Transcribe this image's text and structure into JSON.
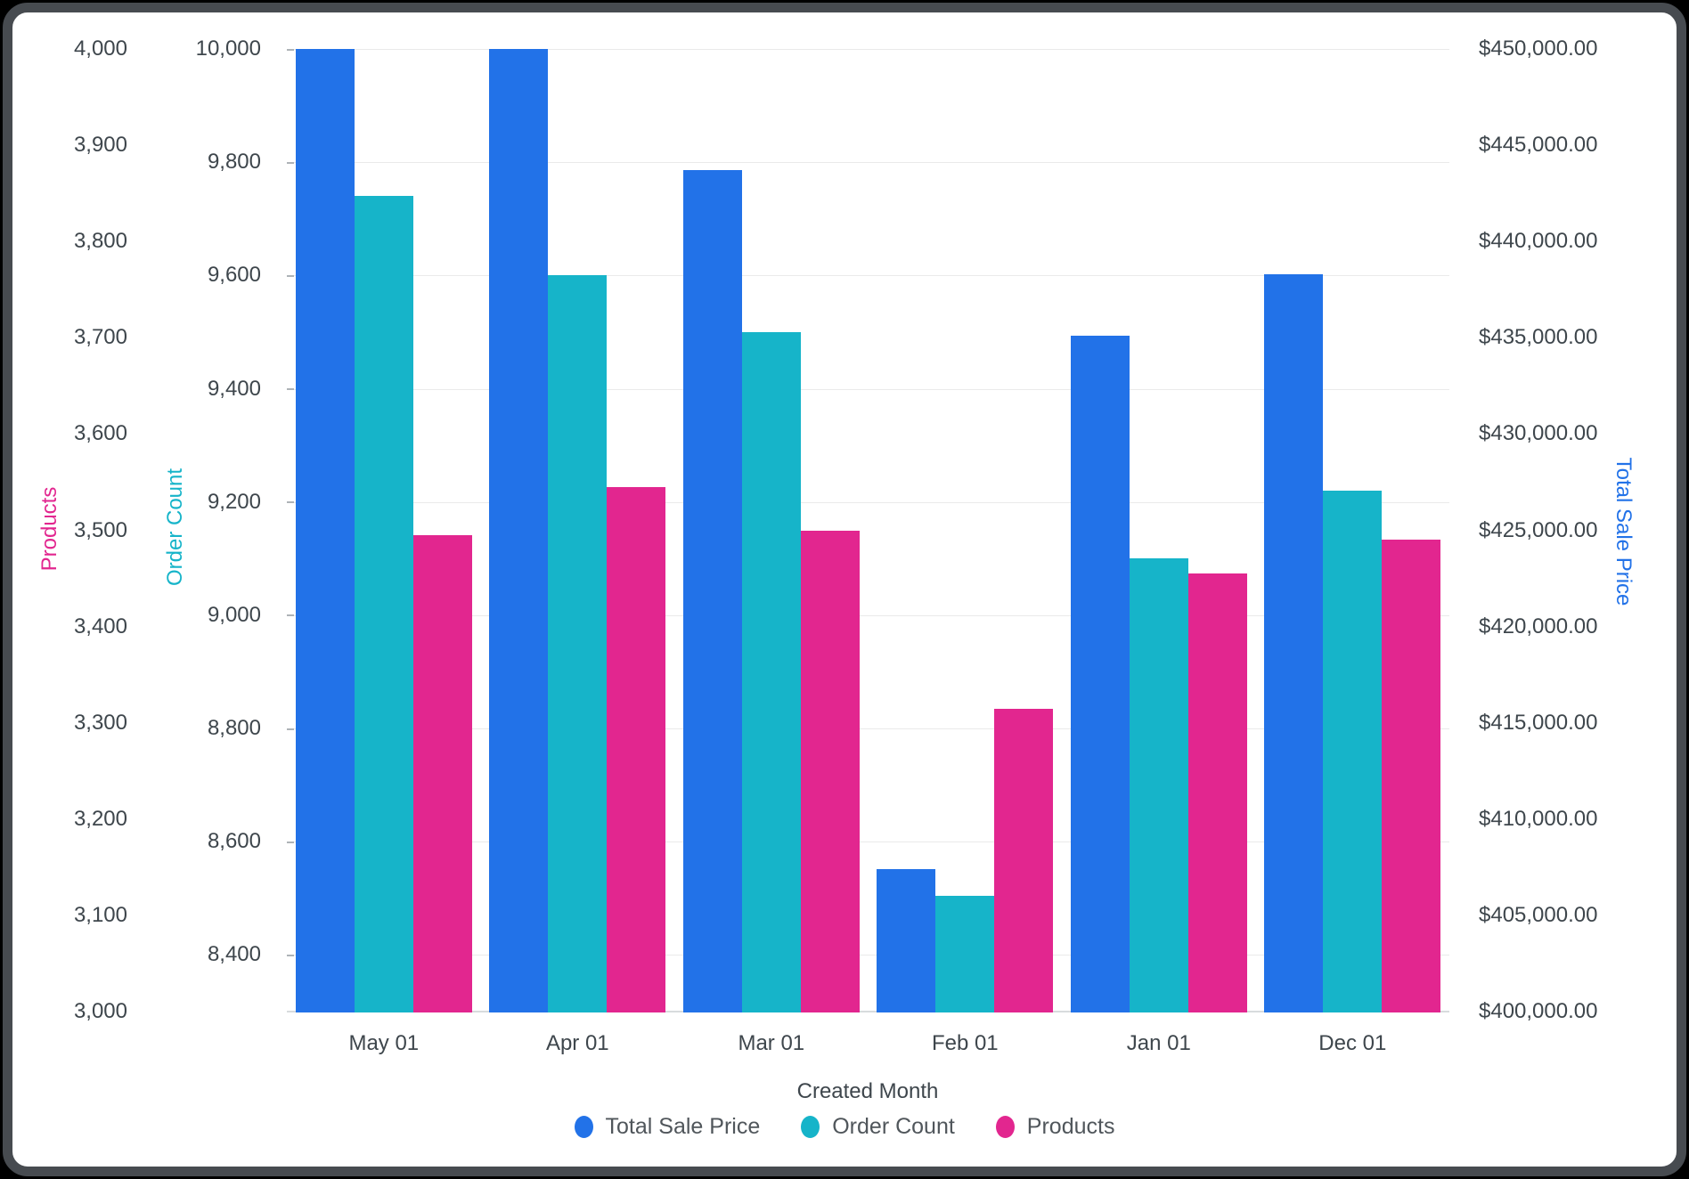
{
  "chart_data": {
    "type": "bar",
    "categories": [
      "May 01",
      "Apr 01",
      "Mar 01",
      "Feb 01",
      "Jan 01",
      "Dec 01"
    ],
    "series": [
      {
        "name": "Total Sale Price",
        "axis": "price",
        "color": "#2272E8",
        "values": [
          450000,
          450000,
          443700,
          407400,
          435100,
          438300
        ]
      },
      {
        "name": "Order Count",
        "axis": "orders",
        "color": "#16B4C9",
        "values": [
          9740,
          9600,
          9500,
          8505,
          9100,
          9220
        ]
      },
      {
        "name": "Products",
        "axis": "products",
        "color": "#E2268F",
        "values": [
          3495,
          3545,
          3500,
          3315,
          3455,
          3490
        ]
      }
    ],
    "xlabel": "Created Month",
    "grid": "horizontal gridlines at Order Count ticks",
    "legend_position": "bottom-center",
    "axes": {
      "products": {
        "title": "Products",
        "title_color": "#E2268F",
        "side": "left-outer",
        "min": 3000,
        "max": 4000,
        "ticks": [
          {
            "value": 4000,
            "label": "4,000"
          },
          {
            "value": 3900,
            "label": "3,900"
          },
          {
            "value": 3800,
            "label": "3,800"
          },
          {
            "value": 3700,
            "label": "3,700"
          },
          {
            "value": 3600,
            "label": "3,600"
          },
          {
            "value": 3500,
            "label": "3,500"
          },
          {
            "value": 3400,
            "label": "3,400"
          },
          {
            "value": 3300,
            "label": "3,300"
          },
          {
            "value": 3200,
            "label": "3,200"
          },
          {
            "value": 3100,
            "label": "3,100"
          },
          {
            "value": 3000,
            "label": "3,000"
          }
        ]
      },
      "orders": {
        "title": "Order Count",
        "title_color": "#16B4C9",
        "side": "left-inner",
        "min": 8300,
        "max": 10000,
        "ticks": [
          {
            "value": 10000,
            "label": "10,000"
          },
          {
            "value": 9800,
            "label": "9,800"
          },
          {
            "value": 9600,
            "label": "9,600"
          },
          {
            "value": 9400,
            "label": "9,400"
          },
          {
            "value": 9200,
            "label": "9,200"
          },
          {
            "value": 9000,
            "label": "9,000"
          },
          {
            "value": 8800,
            "label": "8,800"
          },
          {
            "value": 8600,
            "label": "8,600"
          },
          {
            "value": 8400,
            "label": "8,400"
          }
        ]
      },
      "price": {
        "title": "Total Sale Price",
        "title_color": "#2272E8",
        "side": "right",
        "min": 400000,
        "max": 450000,
        "ticks": [
          {
            "value": 450000,
            "label": "$450,000.00"
          },
          {
            "value": 445000,
            "label": "$445,000.00"
          },
          {
            "value": 440000,
            "label": "$440,000.00"
          },
          {
            "value": 435000,
            "label": "$435,000.00"
          },
          {
            "value": 430000,
            "label": "$430,000.00"
          },
          {
            "value": 425000,
            "label": "$425,000.00"
          },
          {
            "value": 420000,
            "label": "$420,000.00"
          },
          {
            "value": 415000,
            "label": "$415,000.00"
          },
          {
            "value": 410000,
            "label": "$410,000.00"
          },
          {
            "value": 405000,
            "label": "$405,000.00"
          },
          {
            "value": 400000,
            "label": "$400,000.00"
          }
        ]
      }
    },
    "colors": {
      "grid": "#EAEAEA",
      "axis_line": "#D8DBDD",
      "tick_text": "#3E464C",
      "legend_text": "#50565B"
    }
  }
}
